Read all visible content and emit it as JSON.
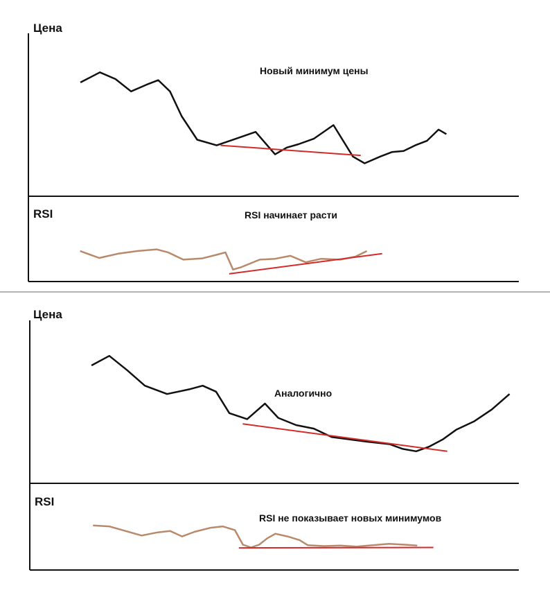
{
  "colors": {
    "price_line": "#111111",
    "rsi_line": "#b8896a",
    "trend_line": "#d42a2a",
    "axis": "#111111",
    "separator": "#666666"
  },
  "chart_data": [
    {
      "type": "line",
      "panel": "top-price",
      "title": "Цена",
      "annotation": "Новый минимум цены",
      "series": [
        {
          "values": [
            [
              0.05,
              0.76
            ],
            [
              0.1,
              0.85
            ],
            [
              0.14,
              0.79
            ],
            [
              0.18,
              0.68
            ],
            [
              0.22,
              0.74
            ],
            [
              0.25,
              0.78
            ],
            [
              0.28,
              0.68
            ],
            [
              0.31,
              0.46
            ],
            [
              0.35,
              0.25
            ],
            [
              0.4,
              0.2
            ],
            [
              0.45,
              0.26
            ],
            [
              0.5,
              0.32
            ],
            [
              0.55,
              0.12
            ],
            [
              0.58,
              0.18
            ],
            [
              0.61,
              0.21
            ],
            [
              0.65,
              0.26
            ],
            [
              0.7,
              0.38
            ],
            [
              0.75,
              0.1
            ],
            [
              0.78,
              0.04
            ],
            [
              0.82,
              0.1
            ],
            [
              0.85,
              0.14
            ],
            [
              0.88,
              0.15
            ],
            [
              0.91,
              0.2
            ],
            [
              0.94,
              0.24
            ],
            [
              0.97,
              0.34
            ],
            [
              0.99,
              0.3
            ]
          ]
        }
      ],
      "trendline": [
        [
          0.41,
          0.2
        ],
        [
          0.77,
          0.11
        ]
      ]
    },
    {
      "type": "line",
      "panel": "top-rsi",
      "title": "RSI",
      "annotation": "RSI начинает расти",
      "series": [
        {
          "values": [
            [
              0.05,
              0.58
            ],
            [
              0.1,
              0.42
            ],
            [
              0.15,
              0.52
            ],
            [
              0.2,
              0.58
            ],
            [
              0.25,
              0.62
            ],
            [
              0.28,
              0.55
            ],
            [
              0.32,
              0.38
            ],
            [
              0.37,
              0.41
            ],
            [
              0.41,
              0.5
            ],
            [
              0.43,
              0.55
            ],
            [
              0.45,
              0.15
            ],
            [
              0.47,
              0.2
            ],
            [
              0.52,
              0.38
            ],
            [
              0.56,
              0.4
            ],
            [
              0.6,
              0.47
            ],
            [
              0.64,
              0.32
            ],
            [
              0.68,
              0.4
            ],
            [
              0.73,
              0.38
            ],
            [
              0.77,
              0.45
            ],
            [
              0.8,
              0.58
            ]
          ]
        }
      ],
      "trendline": [
        [
          0.44,
          0.05
        ],
        [
          0.84,
          0.52
        ]
      ]
    },
    {
      "type": "line",
      "panel": "bottom-price",
      "title": "Цена",
      "annotation": "Аналогично",
      "series": [
        {
          "values": [
            [
              0.05,
              0.82
            ],
            [
              0.09,
              0.9
            ],
            [
              0.13,
              0.78
            ],
            [
              0.17,
              0.65
            ],
            [
              0.22,
              0.58
            ],
            [
              0.27,
              0.62
            ],
            [
              0.3,
              0.65
            ],
            [
              0.33,
              0.6
            ],
            [
              0.36,
              0.42
            ],
            [
              0.4,
              0.37
            ],
            [
              0.44,
              0.5
            ],
            [
              0.47,
              0.38
            ],
            [
              0.51,
              0.32
            ],
            [
              0.55,
              0.29
            ],
            [
              0.59,
              0.22
            ],
            [
              0.63,
              0.2
            ],
            [
              0.67,
              0.18
            ],
            [
              0.72,
              0.16
            ],
            [
              0.75,
              0.12
            ],
            [
              0.78,
              0.1
            ],
            [
              0.81,
              0.14
            ],
            [
              0.84,
              0.2
            ],
            [
              0.87,
              0.28
            ],
            [
              0.91,
              0.35
            ],
            [
              0.95,
              0.45
            ],
            [
              0.99,
              0.58
            ]
          ]
        }
      ],
      "trendline": [
        [
          0.39,
          0.33
        ],
        [
          0.85,
          0.1
        ]
      ]
    },
    {
      "type": "line",
      "panel": "bottom-rsi",
      "title": "RSI",
      "annotation": "RSI не показывает новых минимумов",
      "series": [
        {
          "values": [
            [
              0.05,
              0.7
            ],
            [
              0.09,
              0.68
            ],
            [
              0.13,
              0.58
            ],
            [
              0.17,
              0.48
            ],
            [
              0.21,
              0.55
            ],
            [
              0.24,
              0.58
            ],
            [
              0.27,
              0.46
            ],
            [
              0.3,
              0.56
            ],
            [
              0.34,
              0.65
            ],
            [
              0.37,
              0.68
            ],
            [
              0.4,
              0.6
            ],
            [
              0.42,
              0.28
            ],
            [
              0.44,
              0.22
            ],
            [
              0.46,
              0.28
            ],
            [
              0.48,
              0.42
            ],
            [
              0.5,
              0.52
            ],
            [
              0.53,
              0.46
            ],
            [
              0.56,
              0.38
            ],
            [
              0.58,
              0.27
            ],
            [
              0.62,
              0.25
            ],
            [
              0.66,
              0.26
            ],
            [
              0.7,
              0.24
            ],
            [
              0.74,
              0.27
            ],
            [
              0.78,
              0.3
            ],
            [
              0.82,
              0.28
            ],
            [
              0.85,
              0.26
            ]
          ]
        }
      ],
      "trendline": [
        [
          0.41,
          0.21
        ],
        [
          0.89,
          0.22
        ]
      ]
    }
  ]
}
